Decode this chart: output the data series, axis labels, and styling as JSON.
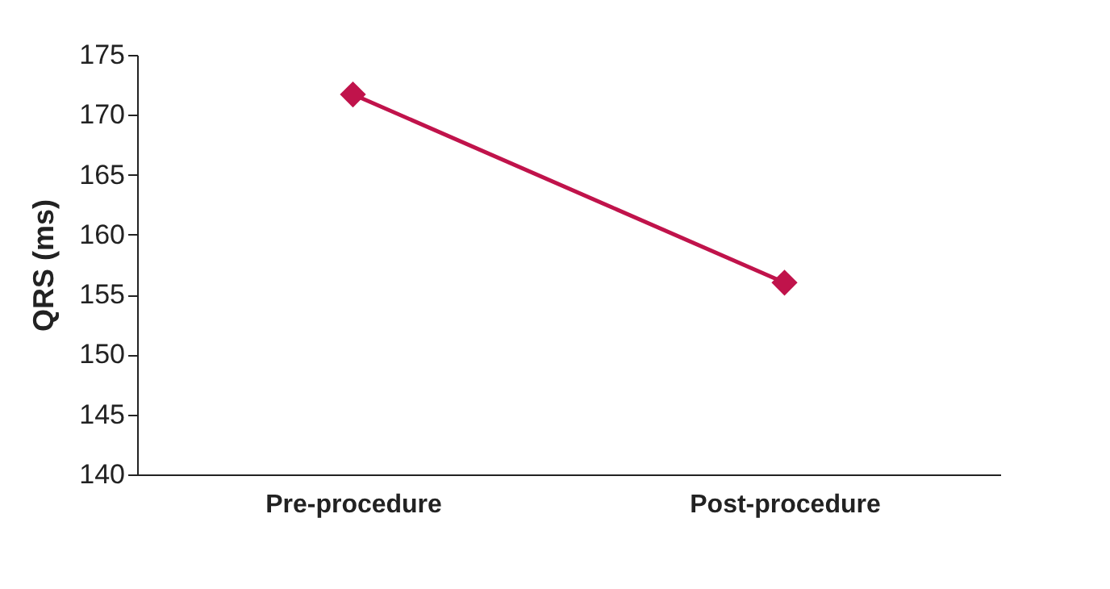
{
  "chart_data": {
    "type": "line",
    "ylabel": "QRS (ms)",
    "categories": [
      "Pre-procedure",
      "Post-procedure"
    ],
    "series": [
      {
        "color": "#c0134b",
        "values": [
          171.7,
          156.0
        ]
      }
    ],
    "ylim": [
      140,
      175
    ],
    "yticks": [
      140,
      145,
      150,
      155,
      160,
      165,
      170,
      175
    ],
    "marker": "diamond",
    "line_style": "solid",
    "grid": false,
    "legend": false
  }
}
